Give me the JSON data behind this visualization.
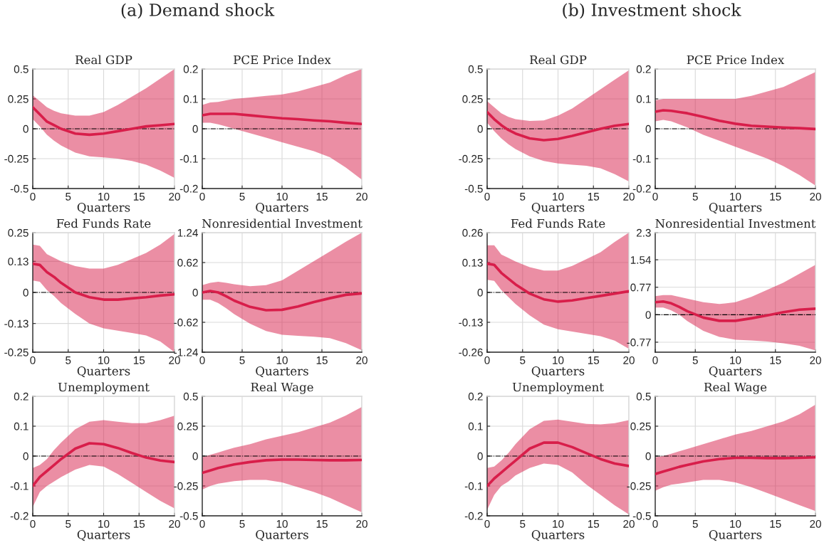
{
  "chart_data": [
    {
      "type": "line",
      "subtitle": "(a) Demand shock",
      "title": "Real GDP",
      "xlabel": "Quarters",
      "xlim": [
        0,
        20
      ],
      "xticks": [
        0,
        5,
        10,
        15,
        20
      ],
      "ylim": [
        -0.5,
        0.5
      ],
      "yticks": [
        -0.5,
        -0.25,
        0,
        0.25,
        0.5
      ],
      "grid": true,
      "ref_lines": [
        {
          "axis": "y",
          "value": 0,
          "color": "#000000",
          "line_style": "dashdot"
        }
      ],
      "series": [
        {
          "color": "#d81e4a",
          "x": [
            0,
            1,
            2,
            3,
            4,
            6,
            8,
            10,
            12,
            14,
            16,
            18,
            20
          ],
          "values": [
            0.18,
            0.12,
            0.06,
            0.03,
            0.0,
            -0.04,
            -0.05,
            -0.04,
            -0.02,
            0.0,
            0.02,
            0.03,
            0.04
          ],
          "upper": [
            0.28,
            0.23,
            0.18,
            0.15,
            0.13,
            0.11,
            0.11,
            0.14,
            0.2,
            0.27,
            0.34,
            0.42,
            0.5
          ],
          "lower": [
            0.08,
            0.02,
            -0.05,
            -0.1,
            -0.14,
            -0.2,
            -0.23,
            -0.24,
            -0.25,
            -0.27,
            -0.3,
            -0.35,
            -0.41
          ]
        }
      ]
    },
    {
      "type": "line",
      "title": "PCE Price Index",
      "xlabel": "Quarters",
      "xlim": [
        0,
        20
      ],
      "xticks": [
        0,
        5,
        10,
        15,
        20
      ],
      "ylim": [
        -0.2,
        0.2
      ],
      "yticks": [
        -0.2,
        -0.1,
        0,
        0.1,
        0.2
      ],
      "grid": true,
      "ref_lines": [
        {
          "axis": "y",
          "value": 0,
          "color": "#000000",
          "line_style": "dashdot"
        }
      ],
      "series": [
        {
          "color": "#d81e4a",
          "x": [
            0,
            1,
            2,
            3,
            4,
            6,
            8,
            10,
            12,
            14,
            16,
            18,
            20
          ],
          "values": [
            0.045,
            0.05,
            0.05,
            0.05,
            0.05,
            0.045,
            0.04,
            0.035,
            0.032,
            0.028,
            0.025,
            0.02,
            0.016
          ],
          "upper": [
            0.08,
            0.088,
            0.09,
            0.095,
            0.1,
            0.105,
            0.11,
            0.115,
            0.125,
            0.14,
            0.155,
            0.18,
            0.2
          ],
          "lower": [
            0.02,
            0.02,
            0.015,
            0.008,
            0.0,
            -0.015,
            -0.03,
            -0.045,
            -0.06,
            -0.075,
            -0.095,
            -0.13,
            -0.17
          ]
        }
      ]
    },
    {
      "type": "line",
      "title": "Fed Funds Rate",
      "xlabel": "Quarters",
      "xlim": [
        0,
        20
      ],
      "xticks": [
        0,
        5,
        10,
        15,
        20
      ],
      "ylim": [
        -0.25,
        0.25
      ],
      "yticks": [
        -0.25,
        -0.13,
        0,
        0.13,
        0.25
      ],
      "grid": true,
      "ref_lines": [
        {
          "axis": "y",
          "value": 0,
          "color": "#000000",
          "line_style": "dashdot"
        }
      ],
      "series": [
        {
          "color": "#d81e4a",
          "x": [
            0,
            1,
            2,
            3,
            4,
            6,
            8,
            10,
            12,
            14,
            16,
            18,
            20
          ],
          "values": [
            0.12,
            0.115,
            0.085,
            0.065,
            0.04,
            0.0,
            -0.02,
            -0.03,
            -0.03,
            -0.025,
            -0.02,
            -0.013,
            -0.008
          ],
          "upper": [
            0.2,
            0.195,
            0.16,
            0.145,
            0.13,
            0.11,
            0.1,
            0.1,
            0.115,
            0.14,
            0.165,
            0.2,
            0.245
          ],
          "lower": [
            0.05,
            0.045,
            0.01,
            -0.015,
            -0.045,
            -0.09,
            -0.13,
            -0.15,
            -0.16,
            -0.17,
            -0.18,
            -0.205,
            -0.25
          ]
        }
      ]
    },
    {
      "type": "line",
      "title": "Nonresidential Investment",
      "xlabel": "Quarters",
      "xlim": [
        0,
        20
      ],
      "xticks": [
        0,
        5,
        10,
        15,
        20
      ],
      "ylim": [
        -1.24,
        1.24
      ],
      "yticks": [
        -1.24,
        -0.62,
        0,
        0.62,
        1.24
      ],
      "grid": true,
      "ref_lines": [
        {
          "axis": "y",
          "value": 0,
          "color": "#000000",
          "line_style": "dashdot"
        }
      ],
      "series": [
        {
          "color": "#d81e4a",
          "x": [
            0,
            1,
            2,
            3,
            4,
            6,
            8,
            10,
            12,
            14,
            16,
            18,
            20
          ],
          "values": [
            0.0,
            0.03,
            0.0,
            -0.08,
            -0.17,
            -0.3,
            -0.37,
            -0.36,
            -0.29,
            -0.2,
            -0.12,
            -0.05,
            -0.02
          ],
          "upper": [
            0.15,
            0.2,
            0.22,
            0.2,
            0.17,
            0.13,
            0.15,
            0.25,
            0.45,
            0.65,
            0.85,
            1.05,
            1.24
          ],
          "lower": [
            -0.15,
            -0.15,
            -0.22,
            -0.33,
            -0.45,
            -0.65,
            -0.8,
            -0.88,
            -0.9,
            -0.92,
            -0.95,
            -1.05,
            -1.2
          ]
        }
      ]
    },
    {
      "type": "line",
      "title": "Unemployment",
      "xlabel": "Quarters",
      "xlim": [
        0,
        20
      ],
      "xticks": [
        0,
        5,
        10,
        15,
        20
      ],
      "ylim": [
        -0.2,
        0.2
      ],
      "yticks": [
        -0.2,
        -0.1,
        0,
        0.1,
        0.2
      ],
      "grid": true,
      "ref_lines": [
        {
          "axis": "y",
          "value": 0,
          "color": "#000000",
          "line_style": "dashdot"
        }
      ],
      "series": [
        {
          "color": "#d81e4a",
          "x": [
            0,
            1,
            2,
            3,
            4,
            6,
            8,
            10,
            12,
            14,
            16,
            18,
            20
          ],
          "values": [
            -0.1,
            -0.07,
            -0.05,
            -0.03,
            -0.01,
            0.025,
            0.043,
            0.04,
            0.027,
            0.01,
            -0.005,
            -0.015,
            -0.02
          ],
          "upper": [
            -0.04,
            -0.03,
            -0.01,
            0.02,
            0.045,
            0.09,
            0.115,
            0.12,
            0.115,
            0.11,
            0.11,
            0.12,
            0.135
          ],
          "lower": [
            -0.17,
            -0.12,
            -0.1,
            -0.085,
            -0.07,
            -0.045,
            -0.03,
            -0.035,
            -0.06,
            -0.09,
            -0.12,
            -0.15,
            -0.175
          ]
        }
      ]
    },
    {
      "type": "line",
      "title": "Real Wage",
      "xlabel": "Quarters",
      "xlim": [
        0,
        20
      ],
      "xticks": [
        0,
        5,
        10,
        15,
        20
      ],
      "ylim": [
        -0.5,
        0.5
      ],
      "yticks": [
        -0.5,
        -0.25,
        0,
        0.25,
        0.5
      ],
      "grid": true,
      "ref_lines": [
        {
          "axis": "y",
          "value": 0,
          "color": "#000000",
          "line_style": "dashdot"
        }
      ],
      "series": [
        {
          "color": "#d81e4a",
          "x": [
            0,
            1,
            2,
            3,
            4,
            6,
            8,
            10,
            12,
            14,
            16,
            18,
            20
          ],
          "values": [
            -0.14,
            -0.12,
            -0.1,
            -0.085,
            -0.07,
            -0.05,
            -0.035,
            -0.03,
            -0.03,
            -0.033,
            -0.035,
            -0.035,
            -0.033
          ],
          "upper": [
            -0.01,
            0.01,
            0.03,
            0.05,
            0.07,
            0.1,
            0.14,
            0.17,
            0.2,
            0.24,
            0.28,
            0.34,
            0.41
          ],
          "lower": [
            -0.28,
            -0.25,
            -0.23,
            -0.22,
            -0.21,
            -0.2,
            -0.2,
            -0.22,
            -0.26,
            -0.3,
            -0.35,
            -0.41,
            -0.47
          ]
        }
      ]
    },
    {
      "type": "line",
      "subtitle": "(b) Investment shock",
      "title": "Real GDP",
      "xlabel": "Quarters",
      "xlim": [
        0,
        20
      ],
      "xticks": [
        0,
        5,
        10,
        15,
        20
      ],
      "ylim": [
        -0.5,
        0.5
      ],
      "yticks": [
        -0.5,
        -0.25,
        0,
        0.25,
        0.5
      ],
      "grid": true,
      "ref_lines": [
        {
          "axis": "y",
          "value": 0,
          "color": "#000000",
          "line_style": "dashdot"
        }
      ],
      "series": [
        {
          "color": "#d81e4a",
          "x": [
            0,
            1,
            2,
            3,
            4,
            6,
            8,
            10,
            12,
            14,
            16,
            18,
            20
          ],
          "values": [
            0.14,
            0.08,
            0.03,
            -0.01,
            -0.04,
            -0.08,
            -0.095,
            -0.085,
            -0.06,
            -0.03,
            0.0,
            0.025,
            0.04
          ],
          "upper": [
            0.23,
            0.18,
            0.13,
            0.1,
            0.08,
            0.065,
            0.07,
            0.11,
            0.17,
            0.25,
            0.33,
            0.41,
            0.49
          ],
          "lower": [
            0.05,
            -0.02,
            -0.08,
            -0.13,
            -0.17,
            -0.23,
            -0.27,
            -0.29,
            -0.3,
            -0.31,
            -0.33,
            -0.38,
            -0.44
          ]
        }
      ]
    },
    {
      "type": "line",
      "title": "PCE Price Index",
      "xlabel": "Quarters",
      "xlim": [
        0,
        20
      ],
      "xticks": [
        0,
        5,
        10,
        15,
        20
      ],
      "ylim": [
        -0.2,
        0.2
      ],
      "yticks": [
        -0.2,
        -0.1,
        0,
        0.1,
        0.2
      ],
      "grid": true,
      "ref_lines": [
        {
          "axis": "y",
          "value": 0,
          "color": "#000000",
          "line_style": "dashdot"
        }
      ],
      "series": [
        {
          "color": "#d81e4a",
          "x": [
            0,
            1,
            2,
            3,
            4,
            6,
            8,
            10,
            12,
            14,
            16,
            18,
            20
          ],
          "values": [
            0.057,
            0.062,
            0.06,
            0.056,
            0.052,
            0.04,
            0.027,
            0.017,
            0.01,
            0.007,
            0.004,
            0.002,
            -0.001
          ],
          "upper": [
            0.095,
            0.1,
            0.1,
            0.1,
            0.1,
            0.1,
            0.1,
            0.1,
            0.11,
            0.125,
            0.14,
            0.165,
            0.19
          ],
          "lower": [
            0.025,
            0.03,
            0.025,
            0.015,
            0.005,
            -0.02,
            -0.04,
            -0.06,
            -0.08,
            -0.1,
            -0.125,
            -0.155,
            -0.19
          ]
        }
      ]
    },
    {
      "type": "line",
      "title": "Fed Funds Rate",
      "xlabel": "Quarters",
      "xlim": [
        0,
        20
      ],
      "xticks": [
        0,
        5,
        10,
        15,
        20
      ],
      "ylim": [
        -0.26,
        0.26
      ],
      "yticks": [
        -0.26,
        -0.13,
        0,
        0.13,
        0.26
      ],
      "grid": true,
      "ref_lines": [
        {
          "axis": "y",
          "value": 0,
          "color": "#000000",
          "line_style": "dashdot"
        }
      ],
      "series": [
        {
          "color": "#d81e4a",
          "x": [
            0,
            1,
            2,
            3,
            4,
            6,
            8,
            10,
            12,
            14,
            16,
            18,
            20
          ],
          "values": [
            0.125,
            0.12,
            0.085,
            0.06,
            0.035,
            -0.005,
            -0.03,
            -0.04,
            -0.035,
            -0.025,
            -0.015,
            -0.005,
            0.005
          ],
          "upper": [
            0.205,
            0.205,
            0.165,
            0.15,
            0.135,
            0.11,
            0.095,
            0.095,
            0.115,
            0.145,
            0.175,
            0.22,
            0.26
          ],
          "lower": [
            0.055,
            0.05,
            0.01,
            -0.02,
            -0.05,
            -0.1,
            -0.14,
            -0.16,
            -0.17,
            -0.18,
            -0.19,
            -0.21,
            -0.245
          ]
        }
      ]
    },
    {
      "type": "line",
      "title": "Nonresidential Investment",
      "xlabel": "Quarters",
      "xlim": [
        0,
        20
      ],
      "xticks": [
        0,
        5,
        10,
        15,
        20
      ],
      "ylim": [
        -1.05,
        2.3
      ],
      "yticks": [
        -0.77,
        0,
        0.77,
        1.54,
        2.3
      ],
      "grid": true,
      "ref_lines": [
        {
          "axis": "y",
          "value": 0,
          "color": "#000000",
          "line_style": "dashdot"
        }
      ],
      "series": [
        {
          "color": "#d81e4a",
          "x": [
            0,
            1,
            2,
            3,
            4,
            6,
            8,
            10,
            12,
            14,
            16,
            18,
            20
          ],
          "values": [
            0.35,
            0.37,
            0.32,
            0.22,
            0.1,
            -0.08,
            -0.17,
            -0.17,
            -0.1,
            -0.02,
            0.07,
            0.14,
            0.17
          ],
          "upper": [
            0.52,
            0.55,
            0.55,
            0.5,
            0.45,
            0.35,
            0.3,
            0.35,
            0.5,
            0.7,
            0.9,
            1.15,
            1.4
          ],
          "lower": [
            0.2,
            0.2,
            0.12,
            0.0,
            -0.18,
            -0.45,
            -0.62,
            -0.7,
            -0.72,
            -0.75,
            -0.8,
            -0.87,
            -1.0
          ]
        }
      ]
    },
    {
      "type": "line",
      "title": "Unemployment",
      "xlabel": "Quarters",
      "xlim": [
        0,
        20
      ],
      "xticks": [
        0,
        5,
        10,
        15,
        20
      ],
      "ylim": [
        -0.2,
        0.2
      ],
      "yticks": [
        -0.2,
        -0.1,
        0,
        0.1,
        0.2
      ],
      "grid": true,
      "ref_lines": [
        {
          "axis": "y",
          "value": 0,
          "color": "#000000",
          "line_style": "dashdot"
        }
      ],
      "series": [
        {
          "color": "#d81e4a",
          "x": [
            0,
            1,
            2,
            3,
            4,
            6,
            8,
            10,
            12,
            14,
            16,
            18,
            20
          ],
          "values": [
            -0.1,
            -0.075,
            -0.055,
            -0.035,
            -0.015,
            0.025,
            0.045,
            0.045,
            0.03,
            0.01,
            -0.01,
            -0.025,
            -0.033
          ],
          "upper": [
            -0.04,
            -0.035,
            -0.015,
            0.01,
            0.04,
            0.09,
            0.118,
            0.122,
            0.115,
            0.108,
            0.106,
            0.11,
            0.12
          ],
          "lower": [
            -0.18,
            -0.13,
            -0.1,
            -0.085,
            -0.065,
            -0.04,
            -0.025,
            -0.03,
            -0.055,
            -0.095,
            -0.13,
            -0.165,
            -0.195
          ]
        }
      ]
    },
    {
      "type": "line",
      "title": "Real Wage",
      "xlabel": "Quarters",
      "xlim": [
        0,
        20
      ],
      "xticks": [
        0,
        5,
        10,
        15,
        20
      ],
      "ylim": [
        -0.5,
        0.5
      ],
      "yticks": [
        -0.5,
        -0.25,
        0,
        0.25,
        0.5
      ],
      "grid": true,
      "ref_lines": [
        {
          "axis": "y",
          "value": 0,
          "color": "#000000",
          "line_style": "dashdot"
        }
      ],
      "series": [
        {
          "color": "#d81e4a",
          "x": [
            0,
            1,
            2,
            3,
            4,
            6,
            8,
            10,
            12,
            14,
            16,
            18,
            20
          ],
          "values": [
            -0.15,
            -0.13,
            -0.11,
            -0.09,
            -0.075,
            -0.045,
            -0.025,
            -0.015,
            -0.015,
            -0.017,
            -0.017,
            -0.015,
            -0.01
          ],
          "upper": [
            -0.01,
            0.0,
            0.02,
            0.04,
            0.06,
            0.1,
            0.14,
            0.18,
            0.21,
            0.25,
            0.29,
            0.35,
            0.43
          ],
          "lower": [
            -0.29,
            -0.26,
            -0.24,
            -0.23,
            -0.22,
            -0.2,
            -0.2,
            -0.22,
            -0.26,
            -0.31,
            -0.36,
            -0.41,
            -0.46
          ]
        }
      ]
    }
  ]
}
